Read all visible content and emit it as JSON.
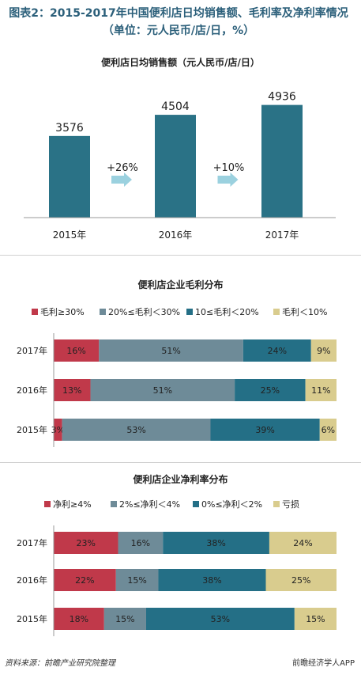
{
  "figure_title": "图表2：2015-2017年中国便利店日均销售额、毛利率及净利率情况（单位：元人民币/店/日，%）",
  "source": "资料来源：前瞻产业研究院整理",
  "brand": "前瞻经济学人APP",
  "colors": {
    "teal_bar": "#2a7286",
    "red": "#c0394a",
    "slate": "#6e8b98",
    "teal": "#246f86",
    "khaki": "#d9cc8e",
    "arrow": "#9bd1df",
    "title": "#2b5f7a"
  },
  "chart_data": [
    {
      "type": "bar",
      "title": "便利店日均销售额（元人民币/店/日）",
      "categories": [
        "2015年",
        "2016年",
        "2017年"
      ],
      "values": [
        3576,
        4504,
        4936
      ],
      "value_labels": [
        "3576",
        "4504",
        "4936"
      ],
      "growth_labels": [
        "+26%",
        "+10%"
      ],
      "ylim": [
        0,
        5200
      ]
    },
    {
      "type": "bar",
      "orientation": "horizontal-stacked-100",
      "title": "便利店企业毛利分布",
      "categories": [
        "2017年",
        "2016年",
        "2015年"
      ],
      "series": [
        {
          "name": "毛利≥30%",
          "values": [
            16,
            13,
            3
          ],
          "labels": [
            "16%",
            "13%",
            "3%"
          ]
        },
        {
          "name": "20%≤毛利＜30%",
          "values": [
            51,
            51,
            53
          ],
          "labels": [
            "51%",
            "51%",
            "53%"
          ]
        },
        {
          "name": "10≤毛利＜20%",
          "values": [
            24,
            25,
            39
          ],
          "labels": [
            "24%",
            "25%",
            "39%"
          ]
        },
        {
          "name": "毛利＜10%",
          "values": [
            9,
            11,
            6
          ],
          "labels": [
            "9%",
            "11%",
            "6%"
          ]
        }
      ]
    },
    {
      "type": "bar",
      "orientation": "horizontal-stacked-100",
      "title": "便利店企业净利率分布",
      "categories": [
        "2017年",
        "2016年",
        "2015年"
      ],
      "series": [
        {
          "name": "净利≥4%",
          "values": [
            23,
            22,
            18
          ],
          "labels": [
            "23%",
            "22%",
            "18%"
          ]
        },
        {
          "name": "2%≤净利＜4%",
          "values": [
            16,
            15,
            15
          ],
          "labels": [
            "16%",
            "15%",
            "15%"
          ]
        },
        {
          "name": "0%≤净利＜2%",
          "values": [
            38,
            38,
            53
          ],
          "labels": [
            "38%",
            "38%",
            "53%"
          ]
        },
        {
          "name": "亏损",
          "values": [
            24,
            25,
            15
          ],
          "labels": [
            "24%",
            "25%",
            "15%"
          ]
        }
      ]
    }
  ]
}
